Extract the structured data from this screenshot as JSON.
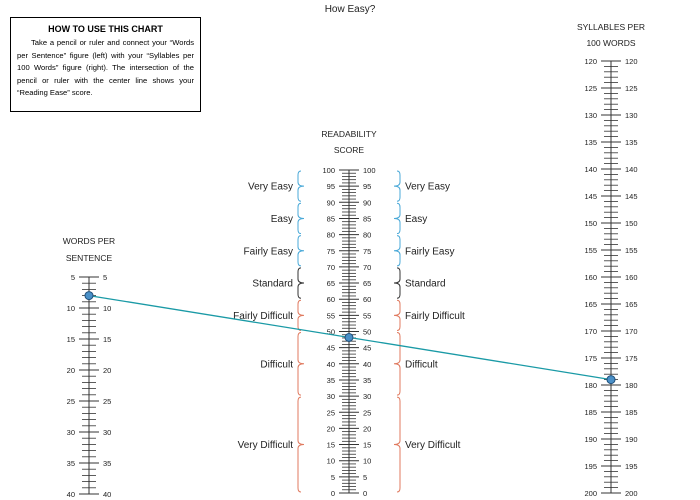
{
  "chart_data": {
    "type": "nomogram",
    "title": "How Easy?",
    "instructions": {
      "heading": "HOW TO USE THIS CHART",
      "body": "Take a pencil or ruler and connect your “Words per Sentence” figure (left) with your “Syllables per 100 Words” figure (right). The intersection of the pencil or ruler with the center line shows your “Reading Ease” score."
    },
    "axes": [
      {
        "id": "words",
        "label_lines": [
          "WORDS PER",
          "SENTENCE"
        ],
        "min": 5,
        "max": 40,
        "major_step": 5,
        "minor_step": 1
      },
      {
        "id": "score",
        "label_lines": [
          "READABILITY",
          "SCORE"
        ],
        "min": 0,
        "max": 100,
        "major_step": 5,
        "minor_step": 1
      },
      {
        "id": "syllables",
        "label_lines": [
          "SYLLABLES PER",
          "100 WORDS"
        ],
        "min": 120,
        "max": 200,
        "major_step": 5,
        "minor_step": 1
      }
    ],
    "categories": [
      {
        "name": "Very Easy",
        "from": 90,
        "to": 100,
        "color": "#4aa9d8"
      },
      {
        "name": "Easy",
        "from": 80,
        "to": 90,
        "color": "#4aa9d8"
      },
      {
        "name": "Fairly Easy",
        "from": 70,
        "to": 80,
        "color": "#4aa9d8"
      },
      {
        "name": "Standard",
        "from": 60,
        "to": 70,
        "color": "#333333"
      },
      {
        "name": "Fairly Difficult",
        "from": 50,
        "to": 60,
        "color": "#e07a5f"
      },
      {
        "name": "Difficult",
        "from": 30,
        "to": 50,
        "color": "#e07a5f"
      },
      {
        "name": "Very Difficult",
        "from": 0,
        "to": 30,
        "color": "#e07a5f"
      }
    ],
    "example": {
      "words_per_sentence": 8,
      "syllables_per_100_words": 179,
      "readability_score": 48
    },
    "colors": {
      "line": "#1a9aa6",
      "marker": "#4a90c8",
      "marker_stroke": "#1f4f7a"
    }
  }
}
